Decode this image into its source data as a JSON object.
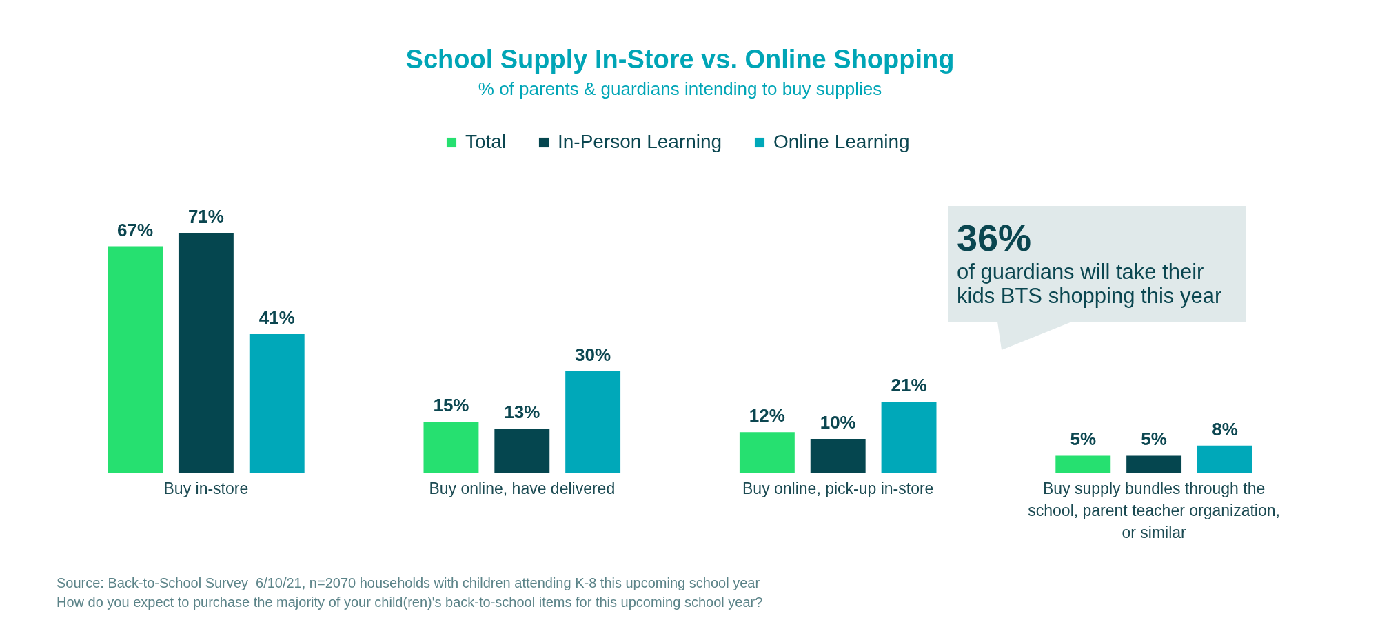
{
  "chart_data": {
    "type": "bar",
    "title": "School Supply In-Store vs. Online Shopping",
    "subtitle": "% of parents & guardians intending to buy supplies",
    "categories": [
      "Buy in-store",
      "Buy online, have delivered",
      "Buy online, pick-up in-store",
      "Buy supply bundles through the school, parent teacher organization, or similar"
    ],
    "series": [
      {
        "name": "Total",
        "color": "#26e070",
        "values": [
          67,
          15,
          12,
          5
        ],
        "value_labels": [
          "67%",
          "15%",
          "12%",
          "5%"
        ]
      },
      {
        "name": "In-Person Learning",
        "color": "#05464f",
        "values": [
          71,
          13,
          10,
          5
        ],
        "value_labels": [
          "71%",
          "13%",
          "10%",
          "5%"
        ]
      },
      {
        "name": "Online Learning",
        "color": "#00a8b9",
        "values": [
          41,
          30,
          21,
          8
        ],
        "value_labels": [
          "41%",
          "30%",
          "21%",
          "8%"
        ]
      }
    ],
    "legend": "top",
    "annotations": [
      "36%",
      "of guardians will take their kids BTS shopping this year",
      "Source: Back-to-School Survey  6/10/21, n=2070 households with children attending K-8 this upcoming school year",
      "How do you expect to purchase the majority of your child(ren)'s back-to-school items for this upcoming school year?"
    ]
  }
}
